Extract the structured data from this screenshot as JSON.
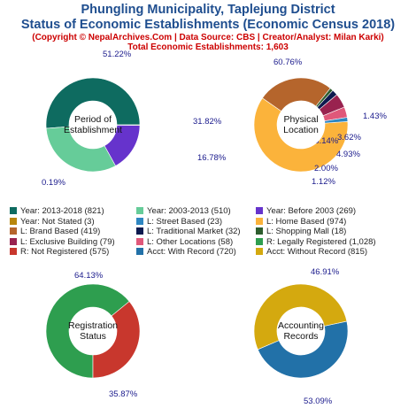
{
  "header": {
    "title_line1": "Phungling Municipality, Taplejung District",
    "title_line2": "Status of Economic Establishments (Economic Census 2018)",
    "subtitle": "(Copyright © NepalArchives.Com | Data Source: CBS | Creator/Analyst: Milan Karki)",
    "total": "Total Economic Establishments: 1,603"
  },
  "chart_data": [
    {
      "type": "pie",
      "center_label": [
        "Period of",
        "Establishment"
      ],
      "slices": [
        {
          "label": "Year: 2013-2018",
          "value": 821,
          "pct_label": "51.22%",
          "color": "#0e6b60"
        },
        {
          "label": "Year: 2003-2013",
          "value": 510,
          "pct_label": "31.82%",
          "color": "#66cc99"
        },
        {
          "label": "Year: Before 2003",
          "value": 269,
          "pct_label": "16.78%",
          "color": "#6633cc"
        },
        {
          "label": "Year: Not Stated",
          "value": 3,
          "pct_label": "0.19%",
          "color": "#b8860b"
        }
      ]
    },
    {
      "type": "pie",
      "center_label": [
        "Physical",
        "Location"
      ],
      "slices": [
        {
          "label": "L: Home Based",
          "value": 974,
          "pct_label": "60.76%",
          "color": "#fbb33b"
        },
        {
          "label": "L: Brand Based",
          "value": 419,
          "pct_label": "26.14%",
          "color": "#b5652c"
        },
        {
          "label": "L: Shopping Mall",
          "value": 18,
          "pct_label": "1.12%",
          "color": "#2e5d2e"
        },
        {
          "label": "L: Traditional Market",
          "value": 32,
          "pct_label": "2.00%",
          "color": "#0d1a4f"
        },
        {
          "label": "L: Exclusive Building",
          "value": 79,
          "pct_label": "4.93%",
          "color": "#99224f"
        },
        {
          "label": "L: Other Locations",
          "value": 58,
          "pct_label": "3.62%",
          "color": "#e0587a"
        },
        {
          "label": "L: Street Based",
          "value": 23,
          "pct_label": "1.43%",
          "color": "#2e86c1"
        }
      ]
    },
    {
      "type": "pie",
      "center_label": [
        "Registration",
        "Status"
      ],
      "slices": [
        {
          "label": "R: Legally Registered",
          "value": 1028,
          "pct_label": "64.13%",
          "color": "#2e9e4f"
        },
        {
          "label": "R: Not Registered",
          "value": 575,
          "pct_label": "35.87%",
          "color": "#c8372d"
        }
      ]
    },
    {
      "type": "pie",
      "center_label": [
        "Accounting",
        "Records"
      ],
      "slices": [
        {
          "label": "Acct: With Record",
          "value": 720,
          "pct_label": "46.91%",
          "color": "#2271a8"
        },
        {
          "label": "Acct: Without Record",
          "value": 815,
          "pct_label": "53.09%",
          "color": "#d4a90f"
        }
      ]
    }
  ],
  "legend": [
    {
      "text": "Year: 2013-2018 (821)",
      "color": "#0e6b60"
    },
    {
      "text": "Year: 2003-2013 (510)",
      "color": "#66cc99"
    },
    {
      "text": "Year: Before 2003 (269)",
      "color": "#6633cc"
    },
    {
      "text": "Year: Not Stated (3)",
      "color": "#b8860b"
    },
    {
      "text": "L: Street Based (23)",
      "color": "#2e86c1"
    },
    {
      "text": "L: Home Based (974)",
      "color": "#fbb33b"
    },
    {
      "text": "L: Brand Based (419)",
      "color": "#b5652c"
    },
    {
      "text": "L: Traditional Market (32)",
      "color": "#0d1a4f"
    },
    {
      "text": "L: Shopping Mall (18)",
      "color": "#2e5d2e"
    },
    {
      "text": "L: Exclusive Building (79)",
      "color": "#99224f"
    },
    {
      "text": "L: Other Locations (58)",
      "color": "#e0587a"
    },
    {
      "text": "R: Legally Registered (1,028)",
      "color": "#2e9e4f"
    },
    {
      "text": "R: Not Registered (575)",
      "color": "#c8372d"
    },
    {
      "text": "Acct: With Record (720)",
      "color": "#2271a8"
    },
    {
      "text": "Acct: Without Record (815)",
      "color": "#d4a90f"
    }
  ],
  "colors": {
    "title": "#1f4e8f",
    "subtitle": "#cc0000",
    "pct_text": "#1a1a8c"
  }
}
